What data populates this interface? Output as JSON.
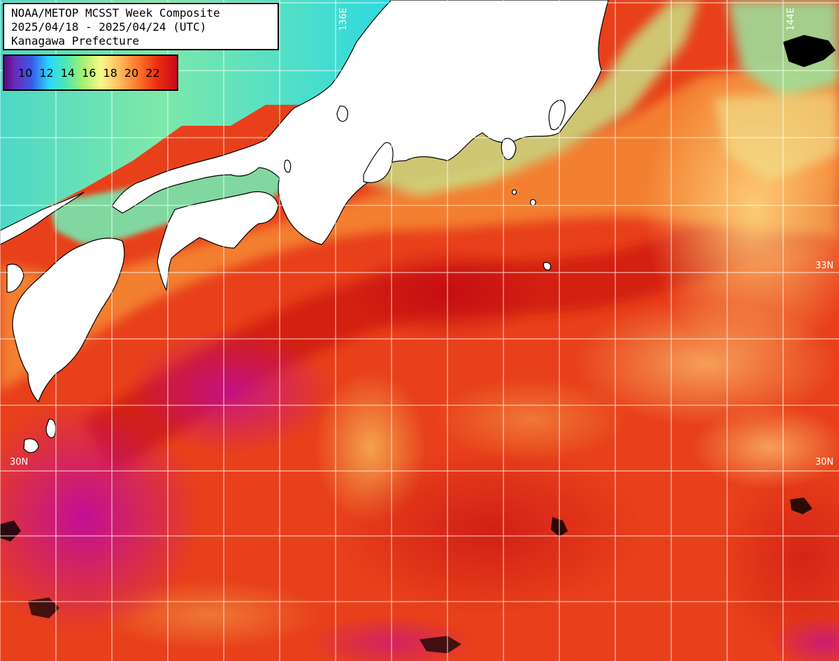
{
  "title": {
    "line1": "NOAA/METOP MCSST Week Composite",
    "line2": "2025/04/18 - 2025/04/24 (UTC)",
    "line3": "Kanagawa Prefecture"
  },
  "legend": {
    "ticks": [
      "10",
      "12",
      "14",
      "16",
      "18",
      "20",
      "22"
    ]
  },
  "grid_labels": {
    "lat_33": "33N",
    "lat_30_left": "30N",
    "lat_30_right": "30N",
    "lon_136": "136E",
    "lon_144": "144E"
  },
  "colors": {
    "land": "#ffffff",
    "warm_core": "#e0300a",
    "warm_deep": "#cc1810",
    "warm_outer": "#f86a22",
    "warm_pale": "#fcbc5c",
    "cool_coast": "#9ee890",
    "cold_sea": "#2ee0c8",
    "very_warm_magenta": "#c41098",
    "grid": "#ffffff"
  }
}
